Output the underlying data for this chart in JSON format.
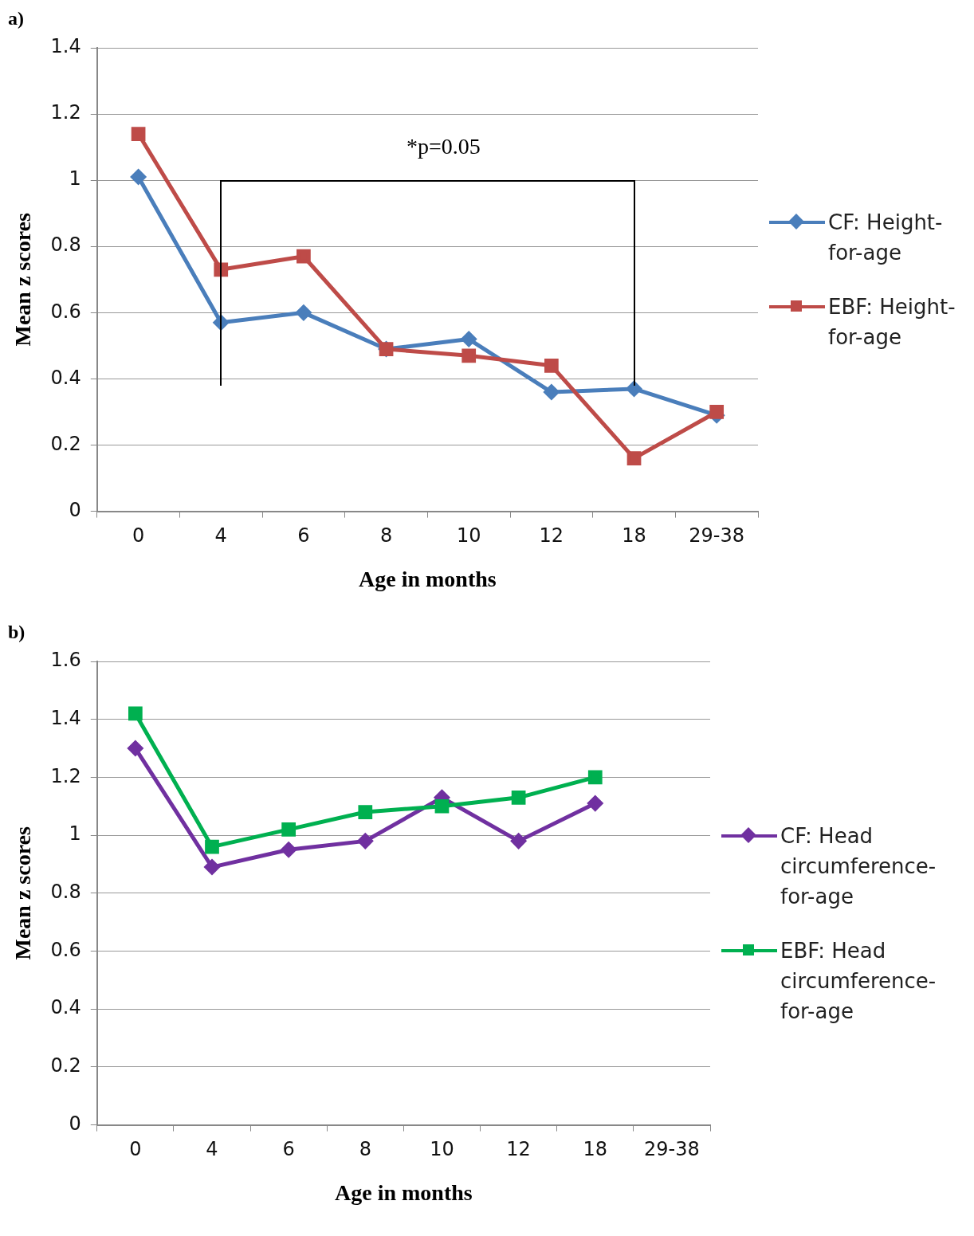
{
  "chart_data": [
    {
      "type": "line",
      "title": "a)",
      "xlabel": "Age in months",
      "ylabel": "Mean z scores",
      "categories": [
        "0",
        "4",
        "6",
        "8",
        "10",
        "12",
        "18",
        "29-38"
      ],
      "series": [
        {
          "name": "CF: Height-for-age",
          "color": "#4a7ebb",
          "marker": "diamond",
          "values": [
            1.01,
            0.57,
            0.6,
            0.49,
            0.52,
            0.36,
            0.37,
            0.29
          ]
        },
        {
          "name": "EBF: Height-for-age",
          "color": "#be4b48",
          "marker": "square",
          "values": [
            1.14,
            0.73,
            0.77,
            0.49,
            0.47,
            0.44,
            0.16,
            0.3
          ]
        }
      ],
      "ylim": [
        0,
        1.4
      ],
      "yticks": [
        0,
        0.2,
        0.4,
        0.6,
        0.8,
        1,
        1.2,
        1.4
      ],
      "grid": "y",
      "legend": "right",
      "annotations": [
        "*p=0.05"
      ]
    },
    {
      "type": "line",
      "title": "b)",
      "xlabel": "Age in months",
      "ylabel": "Mean z scores",
      "categories": [
        "0",
        "4",
        "6",
        "8",
        "10",
        "12",
        "18",
        "29-38"
      ],
      "series": [
        {
          "name": "CF: Head circumference-for-age",
          "color": "#7030a0",
          "marker": "diamond",
          "values": [
            1.3,
            0.89,
            0.95,
            0.98,
            1.13,
            0.98,
            1.11,
            null
          ]
        },
        {
          "name": "EBF: Head circumference-for-age",
          "color": "#00b050",
          "marker": "square",
          "values": [
            1.42,
            0.96,
            1.02,
            1.08,
            1.1,
            1.13,
            1.2,
            null
          ]
        }
      ],
      "ylim": [
        0,
        1.6
      ],
      "yticks": [
        0,
        0.2,
        0.4,
        0.6,
        0.8,
        1,
        1.2,
        1.4,
        1.6
      ],
      "grid": "y",
      "legend": "right"
    }
  ]
}
